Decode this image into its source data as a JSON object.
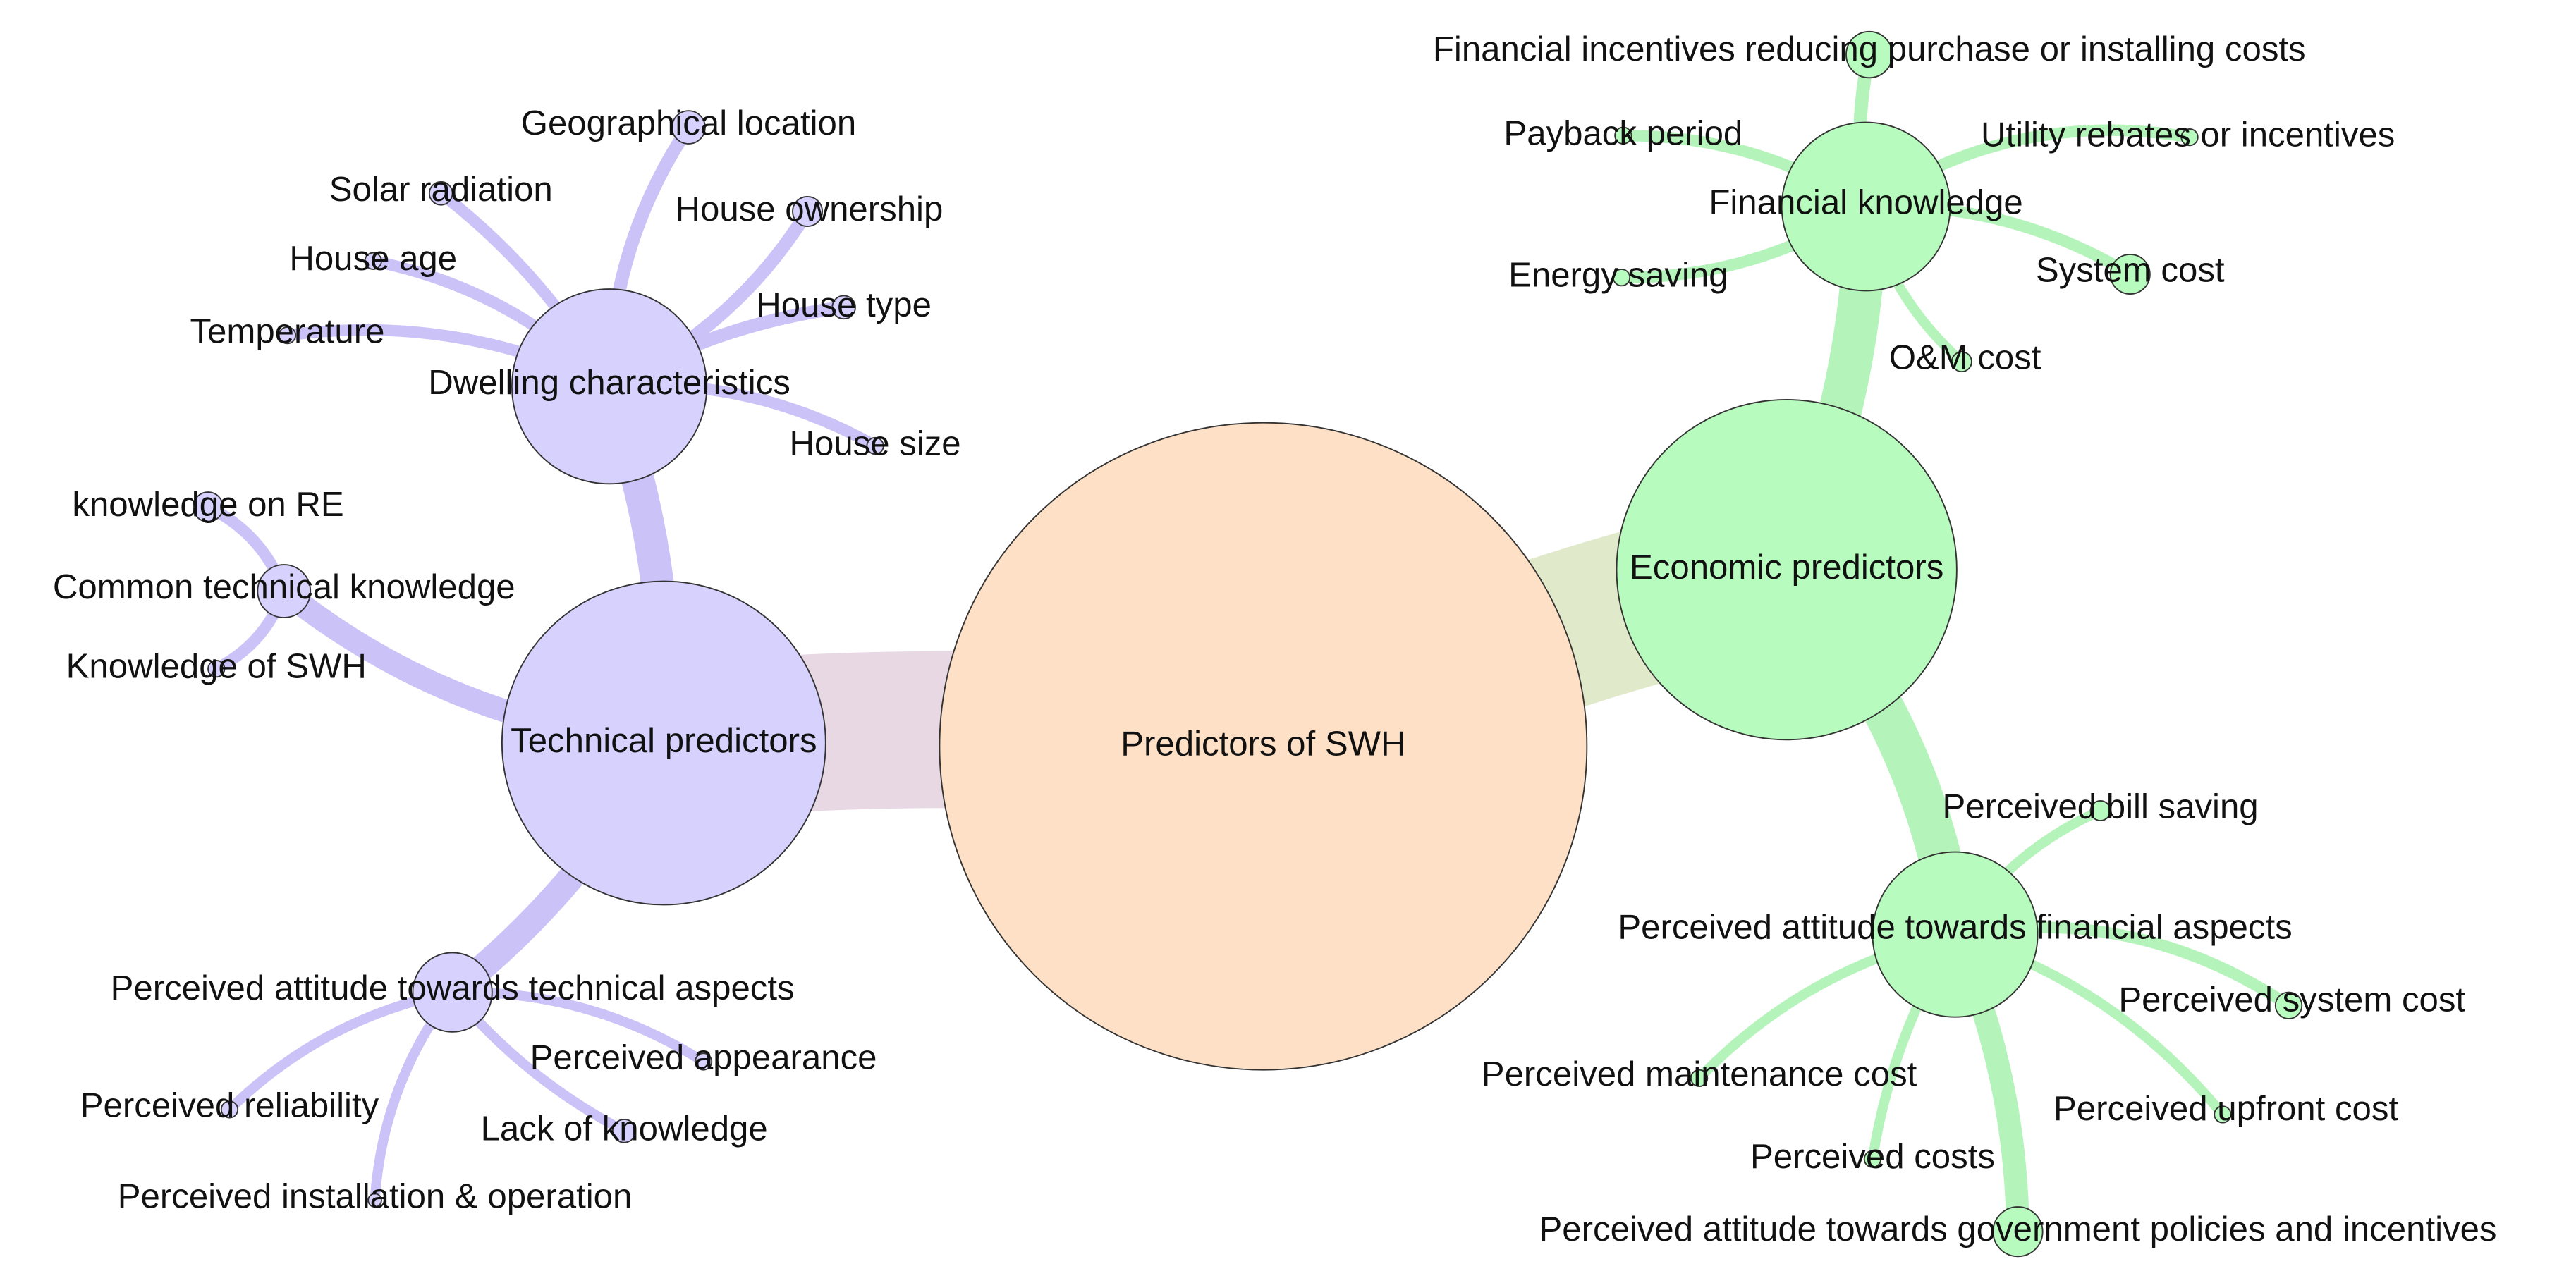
{
  "nodes": [
    {
      "label": "Predictors of SWH"
    },
    {
      "label": "Technical predictors"
    },
    {
      "label": "Economic predictors"
    },
    {
      "label": "Dwelling characteristics"
    },
    {
      "label": "Common technical knowledge"
    },
    {
      "label": "Perceived attitude towards technical aspects"
    },
    {
      "label": "Financial knowledge"
    },
    {
      "label": "Perceived attitude towards financial aspects"
    },
    {
      "label": "Geographical location"
    },
    {
      "label": "Solar radiation"
    },
    {
      "label": "House ownership"
    },
    {
      "label": "House age"
    },
    {
      "label": "House type"
    },
    {
      "label": "Temperature"
    },
    {
      "label": "House size"
    },
    {
      "label": "knowledge on RE"
    },
    {
      "label": "Knowledge of SWH"
    },
    {
      "label": "Perceived appearance"
    },
    {
      "label": "Perceived reliability"
    },
    {
      "label": "Lack of knowledge"
    },
    {
      "label": "Perceived installation & operation"
    },
    {
      "label": "Financial incentives reducing purchase or installing costs"
    },
    {
      "label": "Payback period"
    },
    {
      "label": "Utility rebates or incentives"
    },
    {
      "label": "Energy saving"
    },
    {
      "label": "System cost"
    },
    {
      "label": "O&M cost"
    },
    {
      "label": "Perceived attitude towards government policies and incentives"
    },
    {
      "label": "Perceived bill saving"
    },
    {
      "label": "Perceived system cost"
    },
    {
      "label": "Perceived maintenance cost"
    },
    {
      "label": "Perceived upfront cost"
    },
    {
      "label": "Perceived costs"
    }
  ]
}
